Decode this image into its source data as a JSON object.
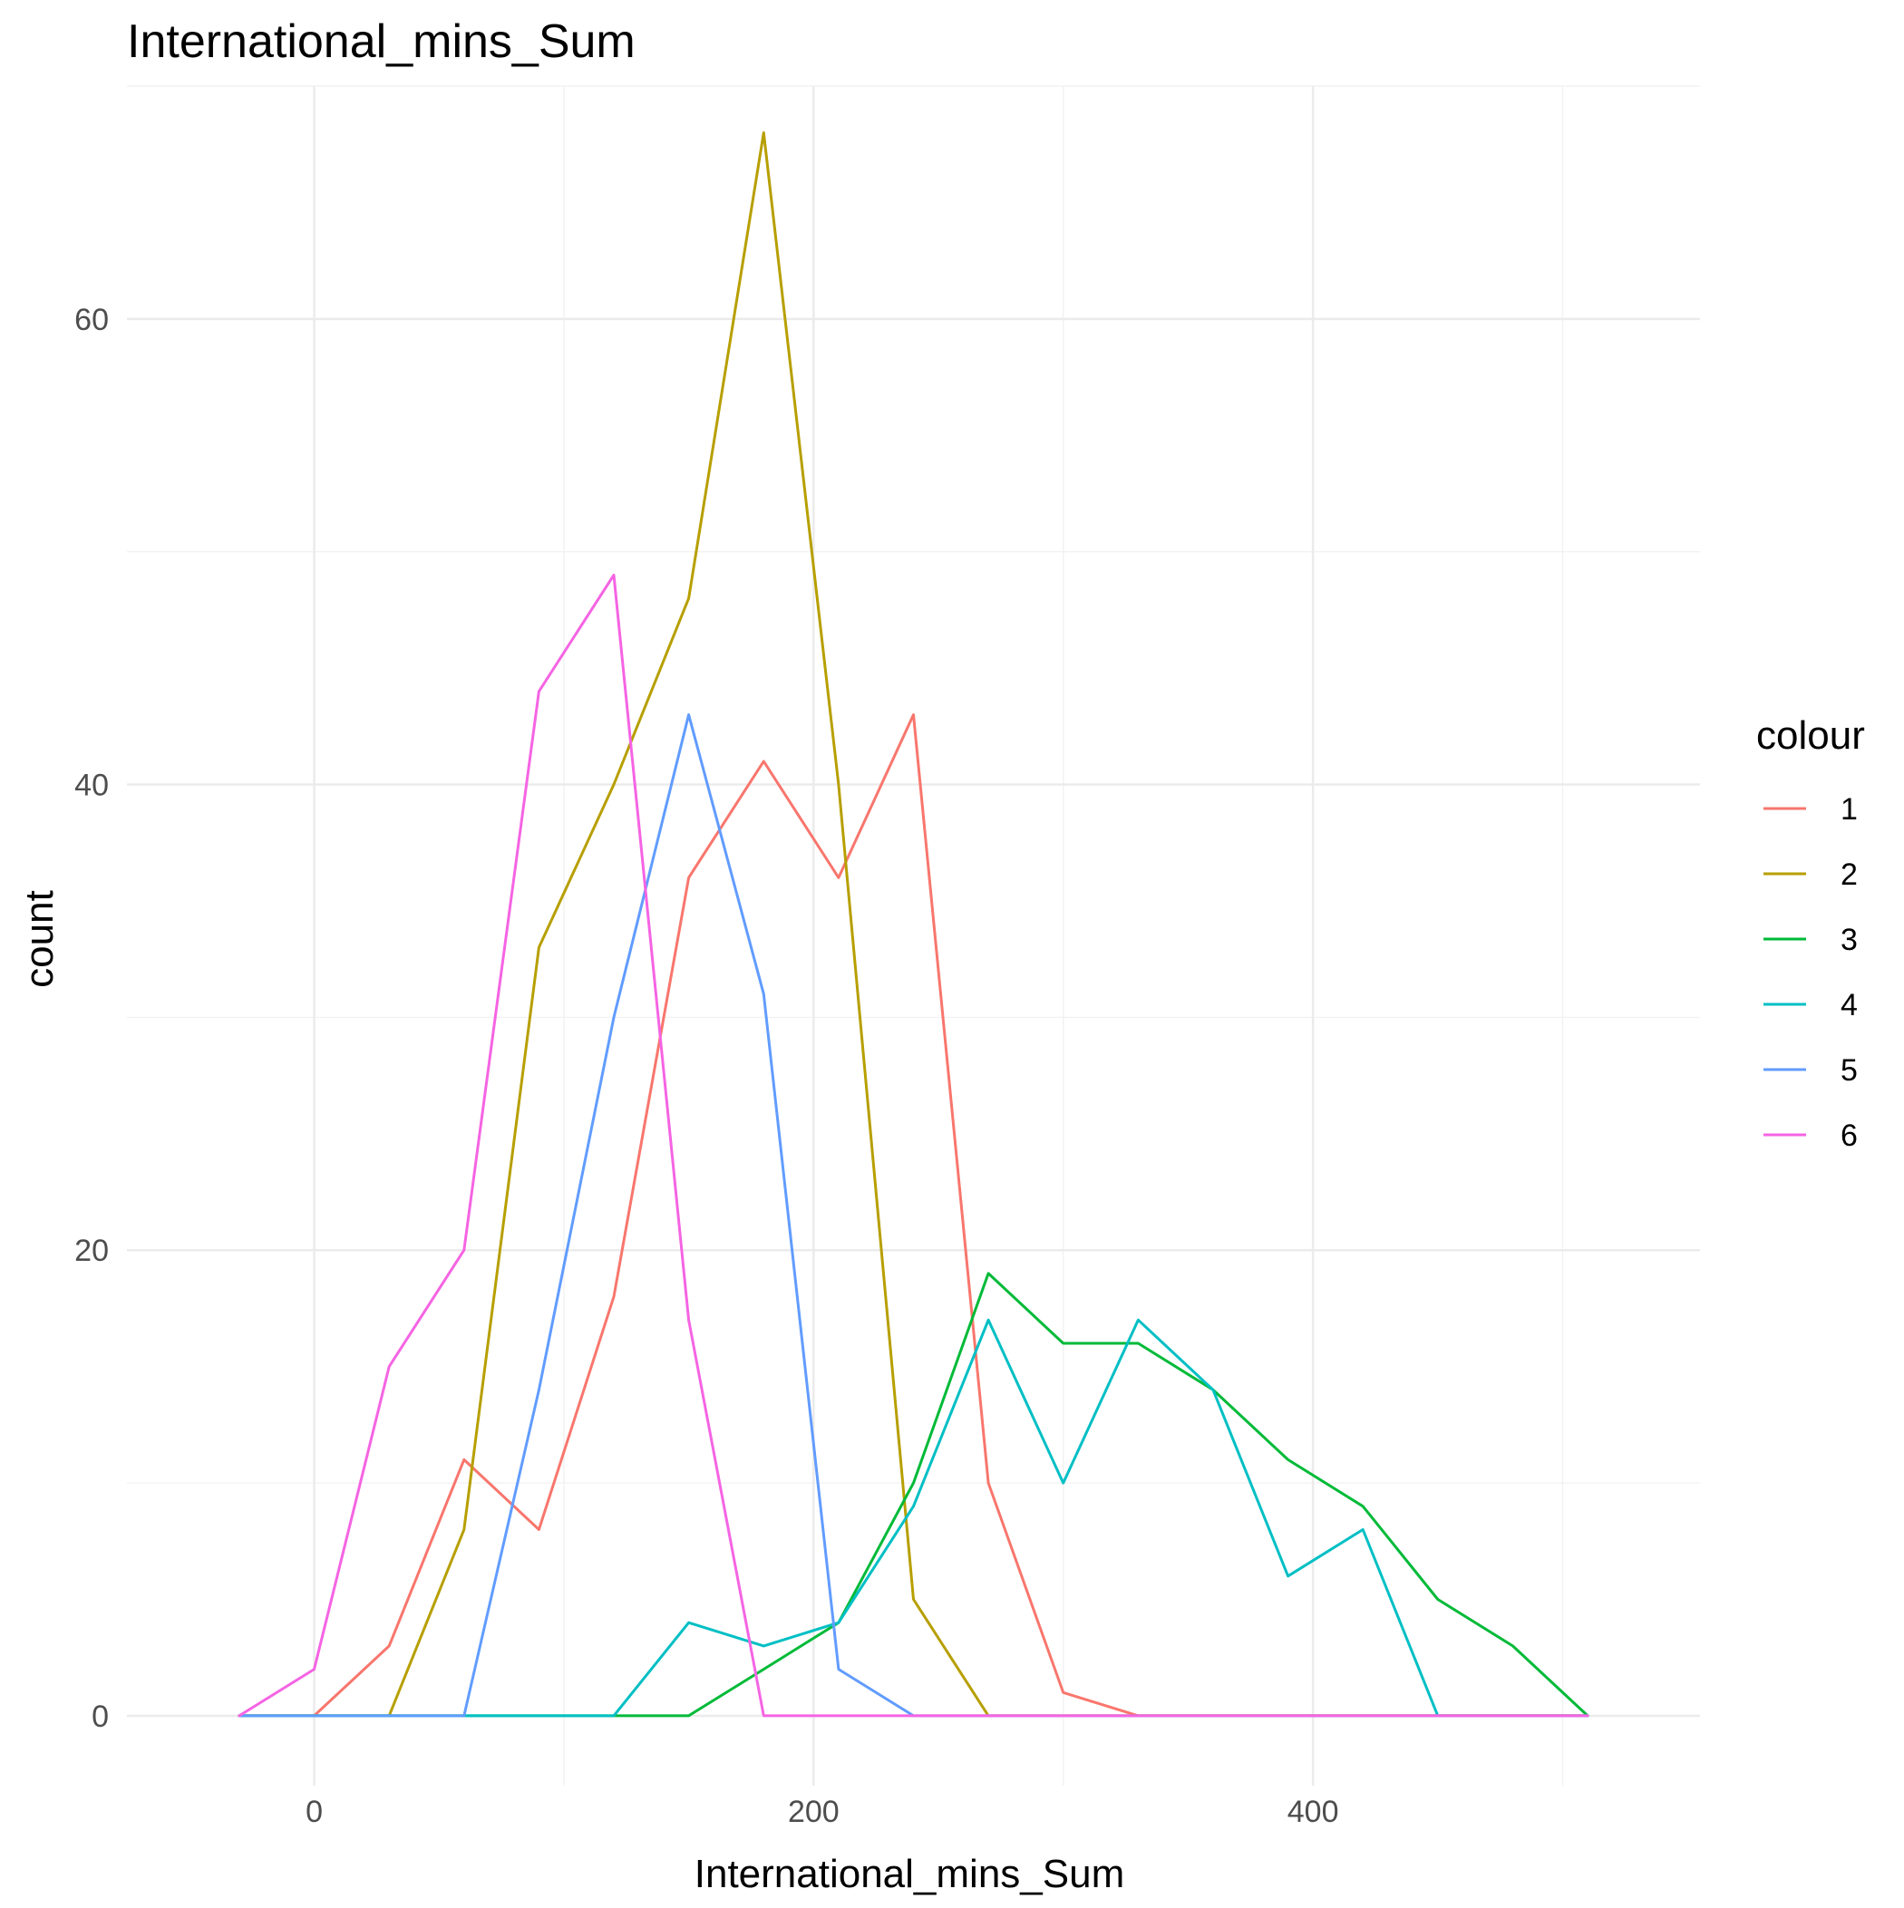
{
  "chart_data": {
    "type": "line",
    "title": "International_mins_Sum",
    "xlabel": "International_mins_Sum",
    "ylabel": "count",
    "x_ticks": [
      0,
      200,
      400
    ],
    "y_ticks": [
      0,
      20,
      40,
      60
    ],
    "xlim": [
      -75,
      555
    ],
    "ylim": [
      -3,
      70
    ],
    "grid": true,
    "legend": {
      "title": "colour",
      "placement": "right"
    },
    "x": [
      -30,
      0,
      30,
      60,
      90,
      120,
      150,
      180,
      210,
      240,
      270,
      300,
      330,
      360,
      390,
      420,
      450,
      480,
      510
    ],
    "series": [
      {
        "name": "1",
        "color": "#F8766D",
        "values": [
          0,
          0,
          3,
          11,
          8,
          18,
          36,
          41,
          36,
          43,
          10,
          1,
          0,
          0,
          0,
          0,
          0,
          0,
          0
        ]
      },
      {
        "name": "2",
        "color": "#B79F00",
        "values": [
          0,
          0,
          0,
          8,
          33,
          40,
          48,
          68,
          40,
          5,
          0,
          0,
          0,
          0,
          0,
          0,
          0,
          0,
          0
        ]
      },
      {
        "name": "3",
        "color": "#00BA38",
        "values": [
          0,
          0,
          0,
          0,
          0,
          0,
          0,
          2,
          4,
          10,
          19,
          16,
          16,
          14,
          11,
          9,
          5,
          3,
          0
        ]
      },
      {
        "name": "4",
        "color": "#00BFC4",
        "values": [
          0,
          0,
          0,
          0,
          0,
          0,
          4,
          3,
          4,
          9,
          17,
          10,
          17,
          14,
          6,
          8,
          0,
          0,
          0
        ]
      },
      {
        "name": "5",
        "color": "#619CFF",
        "values": [
          0,
          0,
          0,
          0,
          14,
          30,
          43,
          31,
          2,
          0,
          0,
          0,
          0,
          0,
          0,
          0,
          0,
          0,
          0
        ]
      },
      {
        "name": "6",
        "color": "#F564E3",
        "values": [
          0,
          2,
          15,
          20,
          44,
          49,
          17,
          0,
          0,
          0,
          0,
          0,
          0,
          0,
          0,
          0,
          0,
          0,
          0
        ]
      }
    ]
  }
}
